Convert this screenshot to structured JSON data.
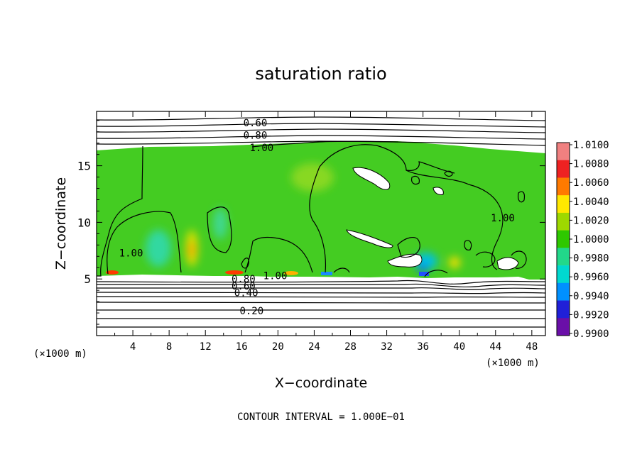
{
  "chart_data": {
    "type": "heatmap",
    "title": "saturation ratio",
    "xlabel": "X−coordinate",
    "ylabel": "Z−coordinate",
    "x_unit_label": "(×1000 m)",
    "z_unit_label": "(×1000 m)",
    "xlim": [
      0,
      49.5
    ],
    "ylim": [
      0,
      19.8
    ],
    "x_ticks": [
      4,
      8,
      12,
      16,
      20,
      24,
      28,
      32,
      36,
      40,
      44,
      48
    ],
    "x_tick_labels": [
      "4",
      "8",
      "12",
      "16",
      "20",
      "24",
      "28",
      "32",
      "36",
      "40",
      "44",
      "48"
    ],
    "y_ticks": [
      5,
      10,
      15
    ],
    "y_tick_labels": [
      "5",
      "10",
      "15"
    ],
    "colorbar": {
      "range": [
        0.99,
        1.01
      ],
      "tick_labels": [
        "1.0100",
        "1.0080",
        "1.0060",
        "1.0040",
        "1.0020",
        "1.0000",
        "0.9980",
        "0.9960",
        "0.9940",
        "0.9920",
        "0.9900"
      ],
      "colors": [
        "#f08080",
        "#ee2222",
        "#ff7a00",
        "#ffe800",
        "#9ed800",
        "#2ec800",
        "#22d88a",
        "#00d8d0",
        "#0090ff",
        "#2020d8",
        "#6a0fa8"
      ]
    },
    "field_color": "#44cc22",
    "cloud_base_km": 5.3,
    "cloud_top_km": 17.2,
    "contour_labels": [
      {
        "text": "0.60",
        "x": 17.5,
        "z": 18.8
      },
      {
        "text": "0.80",
        "x": 17.5,
        "z": 17.7
      },
      {
        "text": "1.00",
        "x": 18.2,
        "z": 16.6
      },
      {
        "text": "1.00",
        "x": 3.8,
        "z": 7.3
      },
      {
        "text": "1.00",
        "x": 44.8,
        "z": 10.4
      },
      {
        "text": "1.00",
        "x": 19.7,
        "z": 5.3
      },
      {
        "text": "0.80",
        "x": 16.2,
        "z": 5.0
      },
      {
        "text": "0.60",
        "x": 16.2,
        "z": 4.4
      },
      {
        "text": "0.40",
        "x": 16.5,
        "z": 3.8
      },
      {
        "text": "0.20",
        "x": 17.1,
        "z": 2.2
      }
    ],
    "footer": "CONTOUR INTERVAL = 1.000E−01"
  }
}
